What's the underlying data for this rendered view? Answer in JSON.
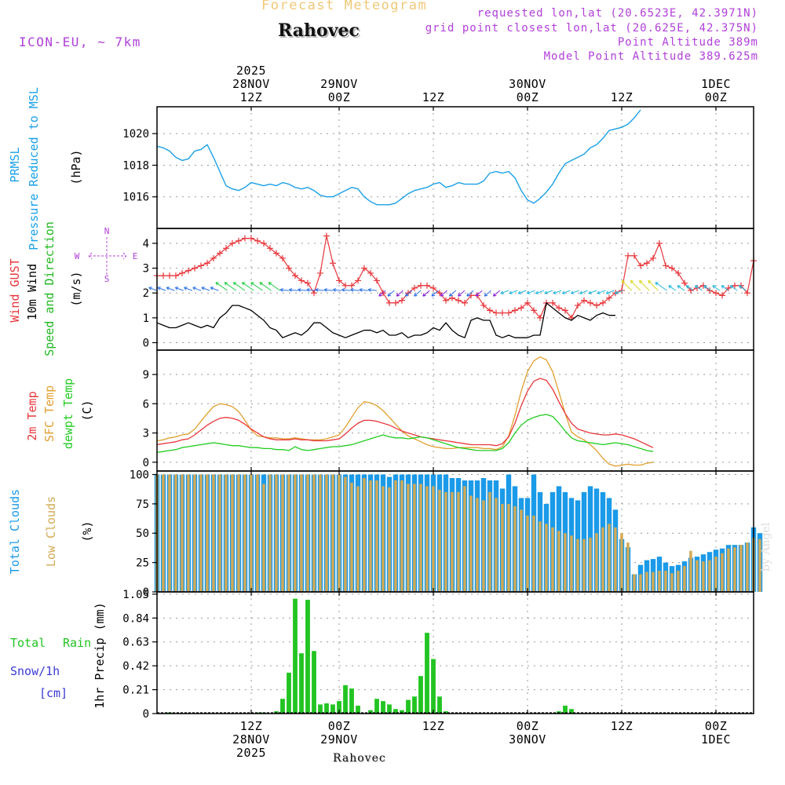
{
  "header": {
    "forecast_title": "Forecast Meteogram",
    "location": "Rahovec",
    "model": "ICON-EU,  ~ 7km",
    "requested": "requested lon,lat (20.6523E, 42.3971N)",
    "grid_point": "grid point closest lon,lat (20.625E, 42.375N)",
    "point_altitude": "Point Altitude 389m",
    "model_altitude": "Model Point Altitude 389.625m",
    "footer_location": "Rahovec",
    "credit": "by Angel"
  },
  "colors": {
    "pressure": "#1aa0e8",
    "gust": "#e8373c",
    "wind": "#000000",
    "dir_label": "#22b822",
    "t2m": "#e8373c",
    "tsfc": "#e0a030",
    "dewpt": "#22cc22",
    "total_clouds": "#1a9ae8",
    "low_clouds": "#d2aa55",
    "rain": "#22c422",
    "snow": "#3a3ad8",
    "purple": "#b040d8",
    "title_orange": "#f0c878"
  },
  "chart_data": [
    {
      "type": "line",
      "id": "pressure",
      "title": "PRMSL Pressure Reduced to MSL",
      "ylabel": "(hPa)",
      "series_labels": [
        "PRMSL",
        "Pressure Reduced to MSL"
      ],
      "ylim": [
        1014.0,
        1021.7
      ],
      "yticks": [
        1016,
        1018,
        1020
      ],
      "x_start_hour": 0,
      "x_step_hours": 1,
      "values": [
        1019.2,
        1019.1,
        1018.9,
        1018.5,
        1018.3,
        1018.4,
        1018.9,
        1019.0,
        1019.3,
        1018.5,
        1017.6,
        1016.7,
        1016.5,
        1016.4,
        1016.6,
        1016.9,
        1016.8,
        1016.7,
        1016.8,
        1016.7,
        1016.9,
        1016.8,
        1016.6,
        1016.5,
        1016.6,
        1016.4,
        1016.1,
        1016.0,
        1016.0,
        1016.2,
        1016.4,
        1016.6,
        1016.5,
        1016.0,
        1015.7,
        1015.5,
        1015.5,
        1015.5,
        1015.6,
        1015.9,
        1016.2,
        1016.4,
        1016.5,
        1016.6,
        1016.8,
        1016.9,
        1016.6,
        1016.7,
        1016.9,
        1016.8,
        1016.8,
        1016.8,
        1017.0,
        1017.5,
        1017.6,
        1017.5,
        1017.6,
        1017.2,
        1016.4,
        1015.8,
        1015.6,
        1015.9,
        1016.3,
        1016.8,
        1017.5,
        1018.1,
        1018.3,
        1018.5,
        1018.7,
        1019.1,
        1019.3,
        1019.7,
        1020.2,
        1020.3,
        1020.4,
        1020.6,
        1021.0,
        1021.5
      ]
    },
    {
      "type": "line",
      "id": "wind",
      "title": "Wind GUST 10m Wind Speed and Direction",
      "ylabel": "(m/s)",
      "series_labels": [
        "Wind GUST",
        "10m Wind",
        "Speed and Direction"
      ],
      "compass": [
        "N",
        "W",
        "E",
        "S"
      ],
      "ylim": [
        -0.3,
        4.6
      ],
      "yticks": [
        0,
        1,
        2,
        3,
        4
      ],
      "x_start_hour": 0,
      "x_step_hours": 1,
      "series": [
        {
          "name": "Wind GUST",
          "values": [
            2.7,
            2.7,
            2.7,
            2.7,
            2.8,
            2.9,
            3.0,
            3.1,
            3.2,
            3.4,
            3.6,
            3.8,
            4.0,
            4.1,
            4.2,
            4.2,
            4.1,
            4.0,
            3.8,
            3.6,
            3.4,
            3.0,
            2.7,
            2.5,
            2.4,
            2.0,
            2.8,
            4.3,
            3.2,
            2.5,
            2.3,
            2.3,
            2.5,
            3.0,
            2.8,
            2.5,
            2.0,
            1.6,
            1.6,
            1.7,
            2.0,
            2.2,
            2.3,
            2.3,
            2.2,
            2.0,
            1.7,
            1.8,
            1.7,
            1.6,
            1.9,
            1.9,
            1.5,
            1.3,
            1.2,
            1.2,
            1.2,
            1.3,
            1.4,
            1.6,
            1.3,
            1.0,
            1.6,
            1.6,
            1.4,
            1.3,
            1.0,
            1.5,
            1.7,
            1.6,
            1.5,
            1.6,
            1.8,
            2.0,
            2.1,
            3.5,
            3.5,
            3.1,
            3.2,
            3.4,
            4.0,
            3.1,
            3.0,
            2.8,
            2.4,
            2.1,
            2.2,
            2.3,
            2.1,
            2.0,
            1.9,
            2.2,
            2.3,
            2.3,
            2.0,
            3.3
          ]
        },
        {
          "name": "10m Wind",
          "values": [
            0.8,
            0.7,
            0.6,
            0.6,
            0.7,
            0.8,
            0.7,
            0.6,
            0.7,
            0.6,
            1.0,
            1.2,
            1.5,
            1.5,
            1.4,
            1.3,
            1.1,
            0.9,
            0.6,
            0.5,
            0.2,
            0.3,
            0.4,
            0.3,
            0.5,
            0.8,
            0.8,
            0.6,
            0.4,
            0.3,
            0.2,
            0.3,
            0.4,
            0.5,
            0.5,
            0.4,
            0.5,
            0.3,
            0.3,
            0.4,
            0.2,
            0.3,
            0.3,
            0.4,
            0.6,
            0.5,
            0.8,
            0.5,
            0.3,
            0.2,
            0.9,
            1.0,
            0.9,
            0.9,
            0.3,
            0.2,
            0.3,
            0.2,
            0.2,
            0.2,
            0.3,
            0.3,
            1.6,
            1.4,
            1.2,
            1.0,
            0.9,
            1.1,
            1.0,
            0.9,
            1.1,
            1.2,
            1.1,
            1.1
          ]
        }
      ]
    },
    {
      "type": "line",
      "id": "temperature",
      "title": "2m Temp SFC Temp dewpt Temp",
      "ylabel": "(C)",
      "series_labels": [
        "2m Temp",
        "SFC Temp",
        "dewpt Temp"
      ],
      "ylim": [
        -0.9,
        11.5
      ],
      "yticks": [
        0,
        3,
        6,
        9
      ],
      "x_start_hour": 0,
      "x_step_hours": 1,
      "series": [
        {
          "name": "2m Temp",
          "values": [
            1.8,
            1.9,
            2.0,
            2.1,
            2.3,
            2.4,
            2.8,
            3.3,
            3.8,
            4.2,
            4.5,
            4.6,
            4.5,
            4.3,
            3.9,
            3.4,
            3.0,
            2.6,
            2.4,
            2.3,
            2.3,
            2.3,
            2.4,
            2.3,
            2.3,
            2.2,
            2.2,
            2.2,
            2.3,
            2.4,
            2.9,
            3.5,
            4.0,
            4.3,
            4.3,
            4.2,
            4.0,
            3.8,
            3.5,
            3.2,
            3.0,
            2.8,
            2.6,
            2.5,
            2.4,
            2.3,
            2.2,
            2.1,
            2.0,
            1.9,
            1.8,
            1.8,
            1.8,
            1.8,
            1.7,
            1.9,
            2.6,
            4.0,
            5.8,
            7.3,
            8.3,
            8.6,
            8.4,
            7.5,
            6.2,
            5.0,
            4.0,
            3.4,
            3.2,
            3.0,
            2.9,
            2.8,
            2.8,
            2.9,
            2.8,
            2.6,
            2.4,
            2.1,
            1.8,
            1.5
          ]
        },
        {
          "name": "SFC Temp",
          "values": [
            2.2,
            2.3,
            2.5,
            2.6,
            2.8,
            2.9,
            3.4,
            4.2,
            5.0,
            5.7,
            6.0,
            5.9,
            5.7,
            5.2,
            4.3,
            3.3,
            2.7,
            2.6,
            2.5,
            2.5,
            2.4,
            2.4,
            2.5,
            2.4,
            2.3,
            2.3,
            2.3,
            2.4,
            2.6,
            2.8,
            3.6,
            4.6,
            5.6,
            6.2,
            6.1,
            5.8,
            5.3,
            4.6,
            3.9,
            3.2,
            2.7,
            2.4,
            2.1,
            1.8,
            1.6,
            1.5,
            1.4,
            1.4,
            1.5,
            1.5,
            1.5,
            1.5,
            1.4,
            1.4,
            1.3,
            1.6,
            2.7,
            4.8,
            7.3,
            9.3,
            10.4,
            10.8,
            10.5,
            9.3,
            7.2,
            5.0,
            3.1,
            2.6,
            2.3,
            1.8,
            1.2,
            0.4,
            -0.2,
            -0.4,
            -0.3,
            -0.2,
            -0.3,
            -0.3,
            -0.1,
            0.0
          ]
        },
        {
          "name": "dewpt Temp",
          "values": [
            1.0,
            1.1,
            1.2,
            1.3,
            1.5,
            1.6,
            1.7,
            1.8,
            1.9,
            2.0,
            1.9,
            1.8,
            1.7,
            1.7,
            1.6,
            1.5,
            1.5,
            1.4,
            1.4,
            1.3,
            1.3,
            1.2,
            1.6,
            1.3,
            1.2,
            1.3,
            1.4,
            1.5,
            1.6,
            1.6,
            1.7,
            1.8,
            2.0,
            2.2,
            2.4,
            2.6,
            2.8,
            2.6,
            2.5,
            2.5,
            2.4,
            2.5,
            2.6,
            2.5,
            2.3,
            2.1,
            1.9,
            1.7,
            1.5,
            1.4,
            1.3,
            1.2,
            1.2,
            1.2,
            1.2,
            1.4,
            2.0,
            3.0,
            3.8,
            4.3,
            4.6,
            4.8,
            4.9,
            4.7,
            4.0,
            3.2,
            2.5,
            2.2,
            2.1,
            2.0,
            1.9,
            1.8,
            1.9,
            2.0,
            1.9,
            1.8,
            1.6,
            1.4,
            1.2,
            1.1
          ]
        }
      ]
    },
    {
      "type": "bar",
      "id": "clouds",
      "title": "Total Clouds Low Clouds",
      "ylabel": "(%)",
      "series_labels": [
        "Total Clouds",
        "Low Clouds"
      ],
      "ylim": [
        0,
        103
      ],
      "yticks": [
        0,
        25,
        50,
        75,
        100
      ],
      "x_start_hour": 0,
      "x_step_hours": 1,
      "series": [
        {
          "name": "Total Clouds",
          "values": [
            100,
            100,
            100,
            100,
            100,
            100,
            100,
            100,
            100,
            100,
            100,
            100,
            100,
            100,
            100,
            100,
            100,
            100,
            100,
            100,
            100,
            100,
            100,
            100,
            100,
            100,
            100,
            100,
            100,
            100,
            100,
            100,
            100,
            100,
            100,
            100,
            100,
            98,
            100,
            100,
            100,
            100,
            100,
            100,
            100,
            100,
            100,
            97,
            97,
            95,
            95,
            95,
            97,
            95,
            95,
            88,
            100,
            90,
            80,
            80,
            100,
            85,
            75,
            85,
            90,
            85,
            80,
            78,
            85,
            90,
            88,
            85,
            80,
            70,
            45,
            38,
            15,
            23,
            27,
            28,
            30,
            25,
            22,
            23,
            26,
            29,
            30,
            32,
            34,
            36,
            37,
            40,
            40,
            40,
            42,
            55,
            50
          ]
        },
        {
          "name": "Low Clouds",
          "values": [
            100,
            100,
            100,
            100,
            100,
            100,
            100,
            100,
            100,
            100,
            100,
            100,
            100,
            100,
            100,
            100,
            100,
            92,
            100,
            100,
            100,
            100,
            100,
            100,
            100,
            100,
            100,
            100,
            100,
            100,
            98,
            93,
            90,
            97,
            95,
            95,
            90,
            89,
            95,
            95,
            92,
            92,
            92,
            90,
            90,
            87,
            85,
            85,
            85,
            90,
            82,
            80,
            78,
            85,
            80,
            75,
            75,
            73,
            70,
            65,
            65,
            60,
            58,
            55,
            52,
            50,
            48,
            45,
            45,
            46,
            50,
            55,
            58,
            55,
            50,
            42,
            15,
            15,
            17,
            17,
            18,
            18,
            16,
            18,
            22,
            35,
            27,
            26,
            27,
            30,
            33,
            37,
            38,
            40,
            42,
            46,
            45
          ]
        }
      ]
    },
    {
      "type": "bar",
      "id": "precip",
      "title": "Total Rain Snow/1h [cm]",
      "ylabel": "1hr Precip (mm)",
      "series_labels": [
        "Total",
        "Rain",
        "Snow/1h",
        "[cm]"
      ],
      "ylim": [
        0,
        1.07
      ],
      "yticks": [
        0,
        0.21,
        0.42,
        0.63,
        0.84,
        1.05
      ],
      "ytick_labels": [
        "0",
        "0.21",
        "0.42",
        "0.63",
        "0.84",
        "1.05"
      ],
      "x_start_hour": 0,
      "x_step_hours": 1,
      "series": [
        {
          "name": "Rain",
          "values": [
            0,
            0,
            0.01,
            0,
            0,
            0,
            0,
            0,
            0,
            0,
            0,
            0,
            0,
            0,
            0,
            0,
            0.01,
            0.01,
            0,
            0.02,
            0.13,
            0.36,
            1.01,
            0.53,
            1.0,
            0.55,
            0.08,
            0.09,
            0.08,
            0.11,
            0.25,
            0.22,
            0.07,
            0,
            0.03,
            0.13,
            0.11,
            0.08,
            0.04,
            0.03,
            0.12,
            0.15,
            0.33,
            0.71,
            0.48,
            0.15,
            0.02,
            0,
            0,
            0,
            0,
            0,
            0,
            0,
            0,
            0,
            0,
            0,
            0,
            0,
            0,
            0,
            0,
            0,
            0.02,
            0.07,
            0.04,
            0,
            0,
            0,
            0,
            0,
            0,
            0,
            0,
            0,
            0,
            0,
            0,
            0,
            0,
            0,
            0,
            0,
            0,
            0,
            0,
            0,
            0,
            0,
            0,
            0,
            0,
            0,
            0
          ]
        },
        {
          "name": "Snow/1h",
          "values": [
            0,
            0,
            0,
            0,
            0,
            0,
            0,
            0,
            0,
            0,
            0,
            0,
            0,
            0,
            0,
            0,
            0,
            0,
            0,
            0,
            0,
            0,
            0,
            0,
            0,
            0,
            0,
            0,
            0,
            0,
            0,
            0,
            0,
            0,
            0,
            0,
            0,
            0,
            0,
            0,
            0,
            0,
            0,
            0,
            0,
            0,
            0,
            0,
            0,
            0,
            0,
            0,
            0,
            0,
            0,
            0,
            0,
            0,
            0,
            0,
            0,
            0,
            0,
            0,
            0,
            0,
            0,
            0,
            0,
            0,
            0,
            0,
            0,
            0,
            0,
            0,
            0,
            0,
            0,
            0,
            0,
            0,
            0,
            0,
            0,
            0,
            0,
            0,
            0,
            0,
            0,
            0,
            0,
            0,
            0,
            0
          ]
        }
      ]
    }
  ],
  "time_axis": {
    "start_label_hour": 0,
    "range_hours": [
      0,
      95
    ],
    "major_ticks": [
      {
        "hour": 15,
        "top": [
          "2025",
          "28NOV",
          "12Z"
        ],
        "bottom": [
          "12Z",
          "28NOV",
          "2025"
        ]
      },
      {
        "hour": 29,
        "top": [
          "29NOV",
          "00Z"
        ],
        "bottom": [
          "00Z",
          "29NOV"
        ]
      },
      {
        "hour": 44,
        "top": [
          "12Z"
        ],
        "bottom": [
          "12Z"
        ]
      },
      {
        "hour": 59,
        "top": [
          "30NOV",
          "00Z"
        ],
        "bottom": [
          "00Z",
          "30NOV"
        ]
      },
      {
        "hour": 74,
        "top": [
          "12Z"
        ],
        "bottom": [
          "12Z"
        ]
      },
      {
        "hour": 89,
        "top": [
          "1DEC",
          "00Z"
        ],
        "bottom": [
          "00Z",
          "1DEC"
        ]
      }
    ]
  }
}
